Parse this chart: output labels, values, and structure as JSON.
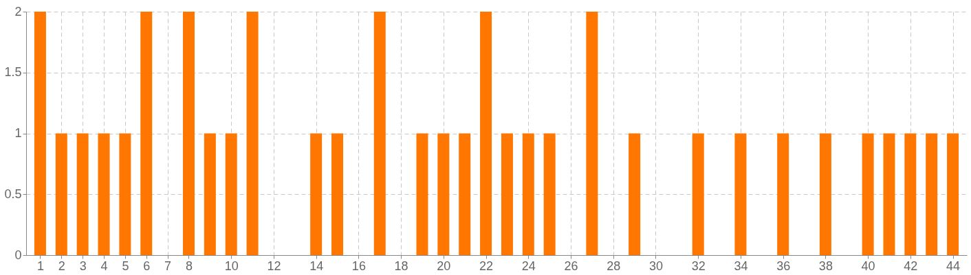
{
  "chart_data": {
    "type": "bar",
    "x": [
      1,
      2,
      3,
      4,
      5,
      6,
      7,
      8,
      9,
      10,
      11,
      12,
      13,
      14,
      15,
      16,
      17,
      18,
      19,
      20,
      21,
      22,
      23,
      24,
      25,
      26,
      27,
      28,
      29,
      30,
      31,
      32,
      33,
      34,
      35,
      36,
      37,
      38,
      39,
      40,
      41,
      42,
      43,
      44
    ],
    "values": [
      2,
      1,
      1,
      1,
      1,
      2,
      0,
      2,
      1,
      1,
      2,
      0,
      0,
      1,
      1,
      0,
      2,
      0,
      1,
      1,
      1,
      2,
      1,
      1,
      1,
      0,
      2,
      0,
      1,
      0,
      0,
      1,
      0,
      1,
      0,
      1,
      0,
      1,
      0,
      1,
      1,
      1,
      1,
      1
    ],
    "color": "#ff7700",
    "xlim": [
      0.5,
      44.5
    ],
    "xticks": [
      1,
      2,
      3,
      4,
      5,
      6,
      7,
      8,
      10,
      12,
      14,
      16,
      18,
      20,
      22,
      24,
      26,
      28,
      30,
      32,
      34,
      36,
      38,
      40,
      42,
      44
    ],
    "ylim": [
      0,
      2
    ],
    "yticks": [
      0,
      0.5,
      1,
      1.5,
      2
    ],
    "grid": true
  }
}
